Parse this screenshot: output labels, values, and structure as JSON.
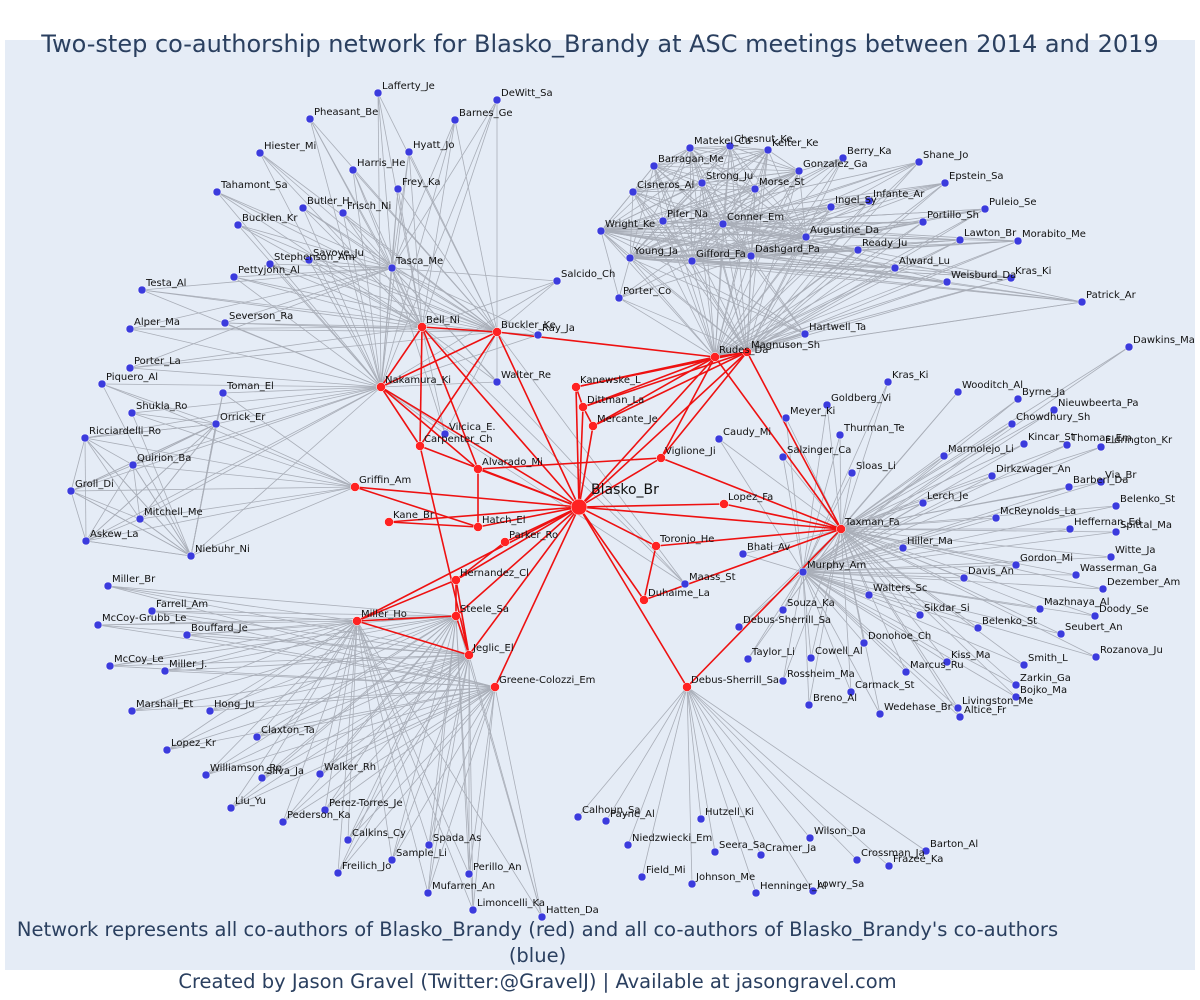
{
  "title": "Two-step co-authorship network for Blasko_Brandy at ASC meetings between 2014 and 2019",
  "caption": {
    "line1": "Network represents all co-authors of Blasko_Brandy (red) and all co-authors of Blasko_Brandy's co-authors (blue)",
    "line2": "Created by Jason Gravel (Twitter:@GravelJ) | Available at jasongravel.com"
  },
  "colors": {
    "background": "#e5ecf6",
    "primary_node": "#ff2222",
    "secondary_node": "#3b3bdd",
    "primary_edge": "#ee1111",
    "secondary_edge": "#a9aeb8",
    "text": "#2a3f5f"
  },
  "chart_data": {
    "type": "network",
    "center": "Blasko_Br",
    "red_nodes": [
      "Bell_Ni",
      "Buckler_Ke",
      "Nakamura_Ki",
      "Carpenter_Ch",
      "Alvarado_Mi",
      "Griffin_Am",
      "Kane_Br",
      "Hatch_El",
      "Parker_Ro",
      "Hernandez_Cl",
      "Steele_Sa",
      "Miller_Ho",
      "Jeglic_El",
      "Greene-Colozzi_Em",
      "Kanewske_L",
      "Dittman_La",
      "Mercante_Je",
      "Rudes_Da",
      "Magnuson_Sh",
      "Viglione_Ji",
      "Lopez_Fa",
      "Taxman_Fa",
      "Toronjo_He",
      "Duhaime_La",
      "Debus-Sherrill_Sa"
    ],
    "blue_nodes": [
      "Lafferty_Je",
      "DeWitt_Sa",
      "Barnes_Ge",
      "Pheasant_Be",
      "Hyatt_Jo",
      "Hiester_Mi",
      "Harris_He",
      "Frey_Ka",
      "Tahamont_Sa",
      "Butler_H.",
      "Frisch_Ni",
      "Bucklen_Kr",
      "Savoye_Ju",
      "Stephenson_Am",
      "Pettyjohn_Al",
      "Tasca_Me",
      "Testa_Al",
      "Severson_Ra",
      "Alper_Ma",
      "Porter_La",
      "Piquero_Al",
      "Toman_El",
      "Shukla_Ro",
      "Orrick_Er",
      "Ricciardelli_Ro",
      "Quirion_Ba",
      "Groll_Di",
      "Mitchell_Me",
      "Askew_La",
      "Niebuhr_Ni",
      "Miller_Br",
      "Farrell_Am",
      "McCoy-Grubb_Le",
      "Bouffard_Je",
      "McCoy_Le",
      "Miller_J.",
      "Marshall_Et",
      "Hong_Ju",
      "Claxton_Ta",
      "Lopez_Kr",
      "Williamson_Ro",
      "Silva_Ja",
      "Walker_Rh",
      "Liu_Yu",
      "Pederson_Ka",
      "Perez-Torres_Je",
      "Calkins_Cy",
      "Spada_As",
      "Sample_Li",
      "Freilich_Jo",
      "Perillo_An",
      "Mufarren_An",
      "Limoncelli_Ka",
      "Hatten_Da",
      "Walter_Re",
      "Ray_Ja",
      "Vilcica_E.",
      "Salcido_Ch",
      "Porter_Co",
      "Matekel_Ca",
      "Chesnut_Ke",
      "Kelter_Ke",
      "Barragan_Me",
      "Berry_Ka",
      "Shane_Jo",
      "Gonzalez_Ga",
      "Strong_Ju",
      "Morse_St",
      "Cisneros_Al",
      "Epstein_Sa",
      "Infante_Ar",
      "Ingel_Sy",
      "Puleio_Se",
      "Pifer_Na",
      "Conner_Em",
      "Portillo_Sh",
      "Wright_Ke",
      "Augustine_Da",
      "Lawton_Br",
      "Morabito_Me",
      "Ready_Ju",
      "Young_Ja",
      "Gifford_Fa",
      "Dashgard_Pa",
      "Alward_Lu",
      "Weisburd_Da",
      "Kras_Ki",
      "Patrick_Ar",
      "Hartwell_Ta",
      "Dawkins_Ma",
      "Kras_Ki",
      "Wooditch_Al",
      "Byrne_Ja",
      "Goldberg_Vi",
      "Nieuwbeerta_Pa",
      "Meyer_Ki",
      "Chowdhury_Sh",
      "Thurman_Te",
      "Caudy_Mi",
      "Thomas_Em",
      "Eldrington_Kr",
      "Kincar_St",
      "Marmolejo_Li",
      "Salzinger_Ca",
      "Sloas_Li",
      "Dirkzwager_An",
      "Via_Br",
      "Barberi_Da",
      "Belenko_St",
      "Lerch_Je",
      "McReynolds_La",
      "Heffernan_Ed",
      "Spittal_Ma",
      "Hiller_Ma",
      "Witte_Ja",
      "Gordon_Mi",
      "Wasserman_Ga",
      "Bhati_Av",
      "Davis_An",
      "Dezember_Am",
      "Murphy_Am",
      "Maass_St",
      "Walters_Sc",
      "Mazhnaya_Al",
      "Doody_Se",
      "Souza_Ka",
      "Debus-Sherrill_Sa",
      "Sikdar_Si",
      "Belenko_St",
      "Seubert_An",
      "Donohoe_Ch",
      "Taylor_Li",
      "Cowell_Al",
      "Kiss_Ma",
      "Smith_L",
      "Rozanova_Ju",
      "Marcus_Ru",
      "Rossheim_Ma",
      "Zarkin_Ga",
      "Carmack_St",
      "Bojko_Ma",
      "Breno_Al",
      "Livingston_Me",
      "Wedehase_Br",
      "Altice_Fr",
      "Calhoun_Sa",
      "Payne_Al",
      "Hutzell_Ki",
      "Barton_Al",
      "Niedzwiecki_Em",
      "Wilson_Da",
      "Seera_Sa",
      "Cramer_Ja",
      "Crossman_Ja",
      "Frazee_Ka",
      "Field_Mi",
      "Johnson_Me",
      "Lowry_Sa",
      "Henninger_Al"
    ]
  }
}
